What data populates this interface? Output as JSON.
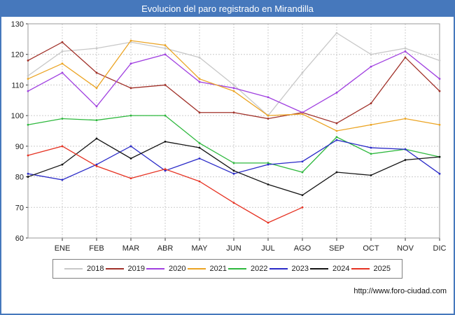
{
  "window": {
    "title": "Evolucion del paro registrado en Mirandilla"
  },
  "footer": {
    "url": "http://www.foro-ciudad.com"
  },
  "colors": {
    "frame_blue": "#4678bc",
    "grid": "#cccccc",
    "plot_border": "#999999",
    "axis_text": "#222222"
  },
  "chart_data": {
    "type": "line",
    "title": "Evolucion del paro registrado en Mirandilla",
    "xlabel": "",
    "ylabel": "",
    "ylim": [
      60,
      130
    ],
    "y_ticks": [
      60,
      70,
      80,
      90,
      100,
      110,
      120,
      130
    ],
    "grid": true,
    "legend_position": "bottom",
    "x_labels": [
      "",
      "ENE",
      "FEB",
      "MAR",
      "ABR",
      "MAY",
      "JUN",
      "JUL",
      "AGO",
      "SEP",
      "OCT",
      "NOV",
      "DIC"
    ],
    "series": [
      {
        "name": "2018",
        "color": "#c8c8c8",
        "values": [
          113,
          121,
          122,
          124,
          122,
          119,
          110,
          100,
          114,
          127,
          120,
          122,
          118
        ]
      },
      {
        "name": "2019",
        "color": "#a03028",
        "values": [
          118,
          124,
          114,
          109,
          110,
          101,
          101,
          99,
          101,
          97.5,
          104,
          119,
          108
        ]
      },
      {
        "name": "2020",
        "color": "#a040e0",
        "values": [
          108,
          114,
          103,
          117,
          120,
          111,
          109,
          106,
          101,
          107.5,
          116,
          121,
          112
        ]
      },
      {
        "name": "2021",
        "color": "#eba423",
        "values": [
          112,
          117,
          109,
          124.5,
          123,
          112,
          108,
          100,
          100.5,
          95,
          97,
          99,
          97
        ]
      },
      {
        "name": "2022",
        "color": "#2db83d",
        "values": [
          97,
          99,
          98.5,
          100,
          100,
          91,
          84.5,
          84.5,
          81.5,
          93,
          87.5,
          89,
          86.5
        ]
      },
      {
        "name": "2023",
        "color": "#2a2ac8",
        "values": [
          81,
          79,
          84,
          90,
          82,
          86,
          81,
          84,
          85,
          92,
          89.5,
          89,
          81
        ]
      },
      {
        "name": "2024",
        "color": "#141414",
        "values": [
          80,
          84,
          92.5,
          86,
          91.5,
          89.5,
          82,
          77.5,
          74,
          81.5,
          80.5,
          85.5,
          86.5
        ]
      },
      {
        "name": "2025",
        "color": "#e63222",
        "values": [
          87,
          90,
          83.5,
          79.5,
          82.5,
          78.5,
          71.5,
          65,
          70
        ]
      }
    ]
  }
}
